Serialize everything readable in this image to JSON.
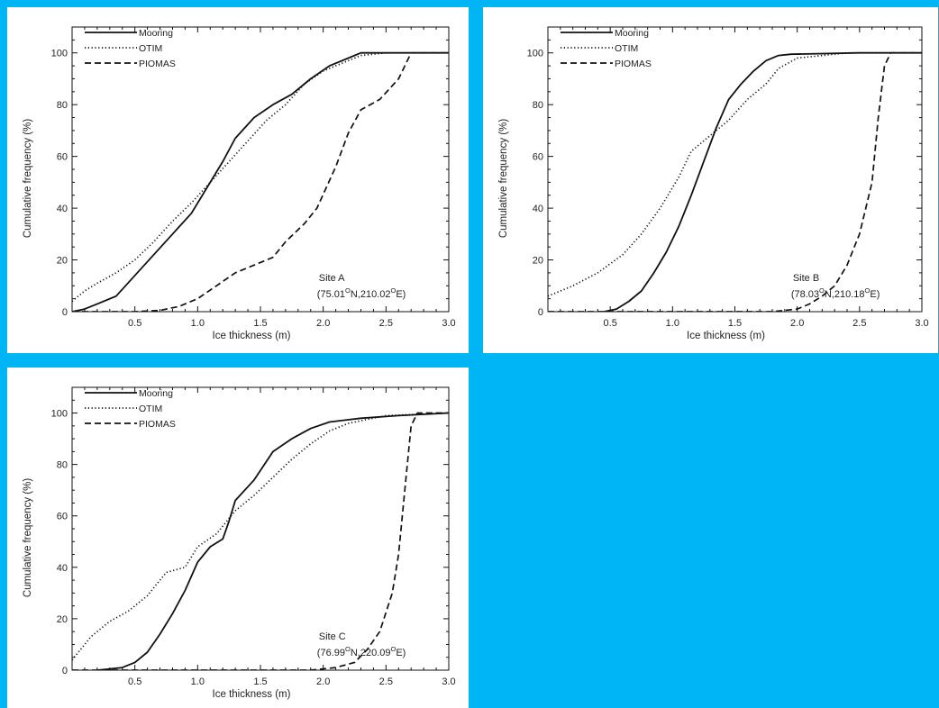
{
  "page": {
    "background": "#00b5f5"
  },
  "chart_data": [
    {
      "id": "panel-a",
      "type": "line",
      "xlabel": "Ice thickness (m)",
      "ylabel": "Cumulative frequency (%)",
      "xlim": [
        0,
        3.0
      ],
      "ylim": [
        0,
        110
      ],
      "xticks": [
        0.5,
        1.0,
        1.5,
        2.0,
        2.5,
        3.0
      ],
      "xtick_labels": [
        "0.5",
        "1.0",
        "1.5",
        "2.0",
        "2.5",
        "3.0"
      ],
      "yticks": [
        0,
        20,
        40,
        60,
        80,
        100
      ],
      "ytick_labels": [
        "0",
        "20",
        "40",
        "60",
        "80",
        "100"
      ],
      "site": {
        "name": "Site A",
        "lat": "75.01",
        "lon": "210.02",
        "unit": "O",
        "lat_suffix": "N,",
        "lon_suffix": "E",
        "open": "(",
        "close": ")"
      },
      "legend_position": "top-left",
      "series": [
        {
          "name": "Mooring",
          "style": "solid",
          "x": [
            0,
            0.1,
            0.2,
            0.35,
            0.5,
            0.65,
            0.8,
            0.95,
            1.1,
            1.2,
            1.3,
            1.45,
            1.6,
            1.75,
            1.9,
            2.05,
            2.2,
            2.3,
            2.5,
            3.0
          ],
          "y": [
            0,
            1,
            3,
            6,
            14,
            22,
            30,
            38,
            50,
            58,
            67,
            75,
            80,
            84,
            90,
            95,
            98,
            100,
            100,
            100
          ]
        },
        {
          "name": "OTIM",
          "style": "dotted",
          "x": [
            0,
            0.1,
            0.2,
            0.35,
            0.5,
            0.65,
            0.8,
            0.95,
            1.1,
            1.25,
            1.4,
            1.55,
            1.7,
            1.85,
            2.0,
            2.15,
            2.3,
            2.5,
            3.0
          ],
          "y": [
            4,
            8,
            11,
            15,
            20,
            27,
            35,
            42,
            50,
            58,
            66,
            74,
            80,
            88,
            93,
            96,
            99,
            100,
            100
          ]
        },
        {
          "name": "PIOMAS",
          "style": "dashed",
          "x": [
            0,
            0.5,
            0.7,
            0.85,
            1.0,
            1.15,
            1.3,
            1.45,
            1.6,
            1.7,
            1.85,
            1.95,
            2.1,
            2.2,
            2.3,
            2.45,
            2.6,
            2.7,
            3.0
          ],
          "y": [
            0,
            0,
            0.5,
            2,
            5,
            10,
            15,
            18,
            21,
            27,
            34,
            40,
            56,
            69,
            78,
            82,
            90,
            100,
            100
          ]
        }
      ]
    },
    {
      "id": "panel-b",
      "type": "line",
      "xlabel": "Ice thickness (m)",
      "ylabel": "Cumulative frequency (%)",
      "xlim": [
        0,
        3.0
      ],
      "ylim": [
        0,
        110
      ],
      "xticks": [
        0.5,
        1.0,
        1.5,
        2.0,
        2.5,
        3.0
      ],
      "xtick_labels": [
        "0.5",
        "1.0",
        "1.5",
        "2.0",
        "2.5",
        "3.0"
      ],
      "yticks": [
        0,
        20,
        40,
        60,
        80,
        100
      ],
      "ytick_labels": [
        "0",
        "20",
        "40",
        "60",
        "80",
        "100"
      ],
      "site": {
        "name": "Site B",
        "lat": "78.03",
        "lon": "210.18",
        "unit": "O",
        "lat_suffix": "N,",
        "lon_suffix": "E",
        "open": "(",
        "close": ")"
      },
      "legend_position": "top-left",
      "series": [
        {
          "name": "Mooring",
          "style": "solid",
          "x": [
            0.45,
            0.55,
            0.65,
            0.75,
            0.85,
            0.95,
            1.05,
            1.15,
            1.25,
            1.35,
            1.45,
            1.55,
            1.65,
            1.75,
            1.85,
            1.95,
            2.5,
            3.0
          ],
          "y": [
            0,
            1,
            4,
            8,
            15,
            23,
            33,
            45,
            58,
            71,
            82,
            88,
            93,
            97,
            99,
            99.5,
            100,
            100
          ]
        },
        {
          "name": "OTIM",
          "style": "dotted",
          "x": [
            0,
            0.2,
            0.4,
            0.6,
            0.75,
            0.9,
            1.05,
            1.15,
            1.3,
            1.45,
            1.6,
            1.75,
            1.85,
            2.0,
            2.2,
            2.4,
            3.0
          ],
          "y": [
            6,
            10,
            15,
            22,
            30,
            40,
            52,
            62,
            68,
            74,
            82,
            88,
            94,
            98,
            99,
            100,
            100
          ]
        },
        {
          "name": "PIOMAS",
          "style": "dashed",
          "x": [
            0,
            1.5,
            1.8,
            2.0,
            2.1,
            2.2,
            2.3,
            2.4,
            2.5,
            2.6,
            2.65,
            2.7,
            2.75,
            3.0
          ],
          "y": [
            0,
            0,
            0,
            1,
            3,
            6,
            10,
            18,
            30,
            50,
            75,
            95,
            100,
            100
          ]
        }
      ]
    },
    {
      "id": "panel-c",
      "type": "line",
      "xlabel": "Ice thickness (m)",
      "ylabel": "Cumulative frequency (%)",
      "xlim": [
        0,
        3.0
      ],
      "ylim": [
        0,
        110
      ],
      "xticks": [
        0.5,
        1.0,
        1.5,
        2.0,
        2.5,
        3.0
      ],
      "xtick_labels": [
        "0.5",
        "1.0",
        "1.5",
        "2.0",
        "2.5",
        "3.0"
      ],
      "yticks": [
        0,
        20,
        40,
        60,
        80,
        100
      ],
      "ytick_labels": [
        "0",
        "20",
        "40",
        "60",
        "80",
        "100"
      ],
      "site": {
        "name": "Site C",
        "lat": "76.99",
        "lon": "220.09",
        "unit": "O",
        "lat_suffix": "N,",
        "lon_suffix": "E",
        "open": "(",
        "close": ")"
      },
      "legend_position": "top-left",
      "series": [
        {
          "name": "Mooring",
          "style": "solid",
          "x": [
            0.2,
            0.3,
            0.4,
            0.5,
            0.6,
            0.7,
            0.8,
            0.9,
            1.0,
            1.1,
            1.2,
            1.25,
            1.3,
            1.45,
            1.6,
            1.75,
            1.9,
            2.05,
            2.3,
            2.6,
            3.0
          ],
          "y": [
            0,
            0.5,
            1,
            3,
            7,
            14,
            22,
            31,
            42,
            48,
            51,
            58,
            66,
            74,
            85,
            90,
            94,
            96.5,
            98,
            99,
            100
          ]
        },
        {
          "name": "OTIM",
          "style": "dotted",
          "x": [
            0,
            0.15,
            0.3,
            0.45,
            0.6,
            0.75,
            0.9,
            1.0,
            1.15,
            1.3,
            1.45,
            1.6,
            1.75,
            1.9,
            2.05,
            2.2,
            2.5,
            3.0
          ],
          "y": [
            4,
            13,
            19,
            23,
            29,
            38,
            40,
            48,
            53,
            62,
            68,
            75,
            82,
            88,
            93,
            96,
            99,
            100
          ]
        },
        {
          "name": "PIOMAS",
          "style": "dashed",
          "x": [
            0,
            1.9,
            2.1,
            2.25,
            2.35,
            2.45,
            2.55,
            2.6,
            2.65,
            2.7,
            2.75,
            3.0
          ],
          "y": [
            0,
            0,
            1,
            3,
            8,
            15,
            30,
            45,
            70,
            95,
            100,
            100
          ]
        }
      ]
    }
  ]
}
